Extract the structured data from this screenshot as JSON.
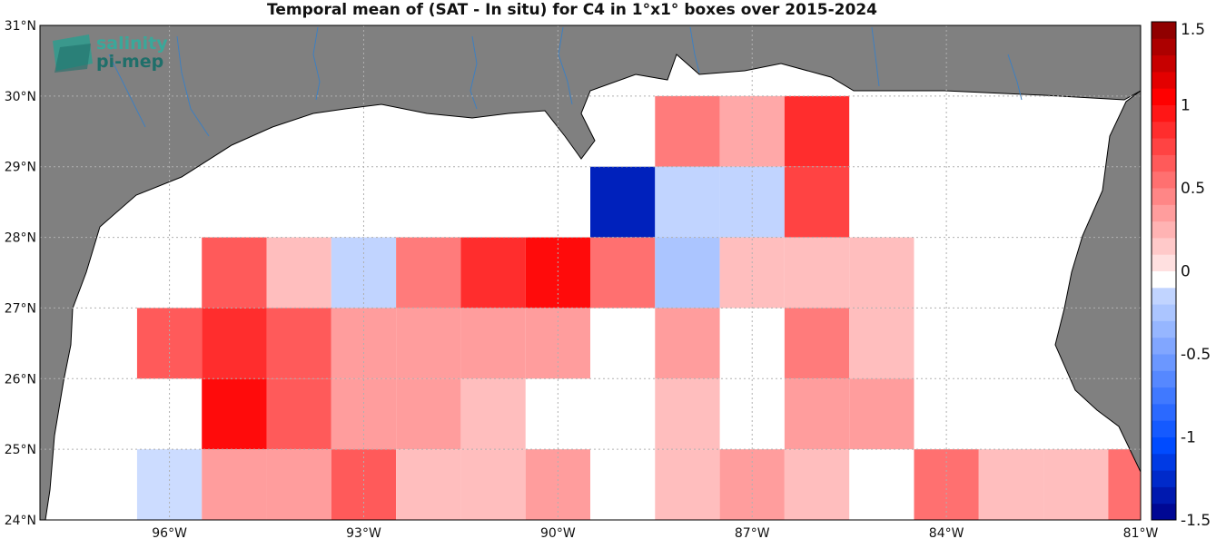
{
  "title": "Temporal mean of (SAT - In situ) for C4 in 1°x1° boxes over 2015-2024",
  "logo": {
    "line1": "salinity",
    "line2": "pi-mep"
  },
  "colors": {
    "land": "#808080",
    "ocean": "#ffffff",
    "coast": "#000000",
    "rivers": "#3f7fbf"
  },
  "chart_data": {
    "type": "heatmap",
    "x_axis": {
      "range": [
        -98,
        -81
      ],
      "ticks": [
        -96,
        -93,
        -90,
        -87,
        -84,
        -81
      ],
      "tick_labels": [
        "96°W",
        "93°W",
        "90°W",
        "87°W",
        "84°W",
        "81°W"
      ]
    },
    "y_axis": {
      "range": [
        24,
        31
      ],
      "ticks": [
        24,
        25,
        26,
        27,
        28,
        29,
        30,
        31
      ],
      "tick_labels": [
        "24°N",
        "25°N",
        "26°N",
        "27°N",
        "28°N",
        "29°N",
        "30°N",
        "31°N"
      ]
    },
    "grid": true,
    "colorbar": {
      "range": [
        -1.5,
        1.5
      ],
      "step": 0.1,
      "ticks": [
        -1.5,
        -1,
        -0.5,
        0,
        0.5,
        1,
        1.5
      ],
      "tick_labels": [
        "-1.5",
        "-1",
        "-0.5",
        "0",
        "0.5",
        "1",
        "1.5"
      ]
    },
    "cells": [
      {
        "lon": -88,
        "lat": 29.5,
        "value": 0.5
      },
      {
        "lon": -87,
        "lat": 29.5,
        "value": 0.3
      },
      {
        "lon": -86,
        "lat": 29.5,
        "value": 0.85
      },
      {
        "lon": -89,
        "lat": 28.5,
        "value": -1.3
      },
      {
        "lon": -88,
        "lat": 28.5,
        "value": -0.15
      },
      {
        "lon": -87,
        "lat": 28.5,
        "value": -0.15
      },
      {
        "lon": -86,
        "lat": 28.5,
        "value": 0.75
      },
      {
        "lon": -95,
        "lat": 27.5,
        "value": 0.65
      },
      {
        "lon": -94,
        "lat": 27.5,
        "value": 0.2
      },
      {
        "lon": -93,
        "lat": 27.5,
        "value": -0.15
      },
      {
        "lon": -92,
        "lat": 27.5,
        "value": 0.5
      },
      {
        "lon": -91,
        "lat": 27.5,
        "value": 0.85
      },
      {
        "lon": -90,
        "lat": 27.5,
        "value": 1.0
      },
      {
        "lon": -89,
        "lat": 27.5,
        "value": 0.55
      },
      {
        "lon": -88,
        "lat": 27.5,
        "value": -0.25
      },
      {
        "lon": -87,
        "lat": 27.5,
        "value": 0.2
      },
      {
        "lon": -86,
        "lat": 27.5,
        "value": 0.2
      },
      {
        "lon": -85,
        "lat": 27.5,
        "value": 0.2
      },
      {
        "lon": -96,
        "lat": 26.5,
        "value": 0.65
      },
      {
        "lon": -95,
        "lat": 26.5,
        "value": 0.85
      },
      {
        "lon": -94,
        "lat": 26.5,
        "value": 0.65
      },
      {
        "lon": -93,
        "lat": 26.5,
        "value": 0.35
      },
      {
        "lon": -92,
        "lat": 26.5,
        "value": 0.35
      },
      {
        "lon": -91,
        "lat": 26.5,
        "value": 0.35
      },
      {
        "lon": -90,
        "lat": 26.5,
        "value": 0.35
      },
      {
        "lon": -88,
        "lat": 26.5,
        "value": 0.35
      },
      {
        "lon": -86,
        "lat": 26.5,
        "value": 0.5
      },
      {
        "lon": -85,
        "lat": 26.5,
        "value": 0.2
      },
      {
        "lon": -95,
        "lat": 25.5,
        "value": 1.0
      },
      {
        "lon": -94,
        "lat": 25.5,
        "value": 0.65
      },
      {
        "lon": -93,
        "lat": 25.5,
        "value": 0.35
      },
      {
        "lon": -92,
        "lat": 25.5,
        "value": 0.35
      },
      {
        "lon": -91,
        "lat": 25.5,
        "value": 0.2
      },
      {
        "lon": -88,
        "lat": 25.5,
        "value": 0.2
      },
      {
        "lon": -86,
        "lat": 25.5,
        "value": 0.35
      },
      {
        "lon": -85,
        "lat": 25.5,
        "value": 0.35
      },
      {
        "lon": -96,
        "lat": 24.5,
        "value": -0.1
      },
      {
        "lon": -95,
        "lat": 24.5,
        "value": 0.35
      },
      {
        "lon": -94,
        "lat": 24.5,
        "value": 0.35
      },
      {
        "lon": -93,
        "lat": 24.5,
        "value": 0.65
      },
      {
        "lon": -92,
        "lat": 24.5,
        "value": 0.2
      },
      {
        "lon": -91,
        "lat": 24.5,
        "value": 0.2
      },
      {
        "lon": -90,
        "lat": 24.5,
        "value": 0.35
      },
      {
        "lon": -88,
        "lat": 24.5,
        "value": 0.2
      },
      {
        "lon": -87,
        "lat": 24.5,
        "value": 0.35
      },
      {
        "lon": -86,
        "lat": 24.5,
        "value": 0.2
      },
      {
        "lon": -84,
        "lat": 24.5,
        "value": 0.55
      },
      {
        "lon": -83,
        "lat": 24.5,
        "value": 0.2
      },
      {
        "lon": -82,
        "lat": 24.5,
        "value": 0.2
      },
      {
        "lon": -81.25,
        "lat": 24.5,
        "value": 0.55,
        "lon_half_width": 0.25
      }
    ]
  }
}
